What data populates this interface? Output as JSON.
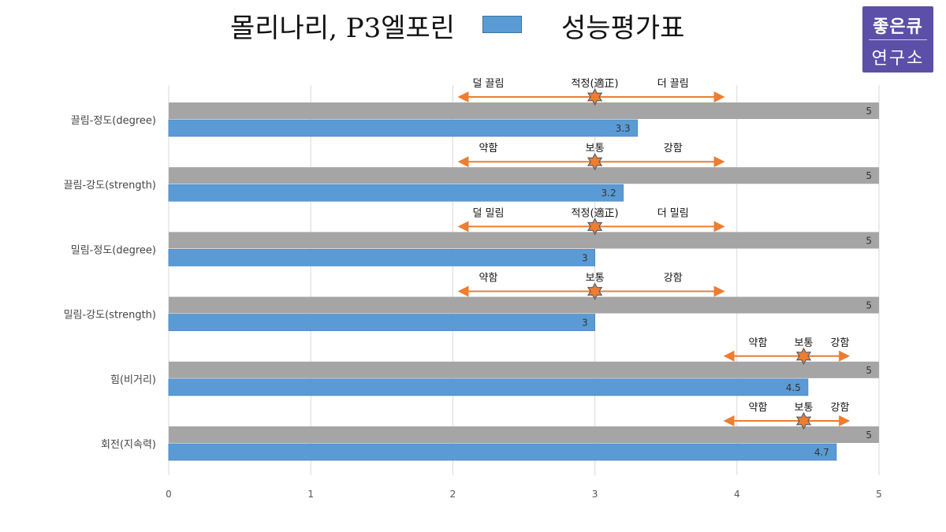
{
  "header": {
    "title_left": "몰리나리, P3엘포린",
    "title_right": "성능평가표",
    "legend_color": "#5b9bd5"
  },
  "logo": {
    "line1": "좋은큐",
    "line2": "연구소",
    "bg": "#5b4fa7"
  },
  "chart_data": {
    "type": "bar",
    "orientation": "horizontal",
    "categories": [
      "끌림-정도(degree)",
      "끌림-강도(strength)",
      "밀림-정도(degree)",
      "밀림-강도(strength)",
      "힘(비거리)",
      "회전(지속력)"
    ],
    "series": [
      {
        "values": [
          5,
          5,
          5,
          5,
          5,
          5
        ],
        "color": "#a5a5a5"
      },
      {
        "values": [
          3.3,
          3.2,
          3,
          3,
          4.5,
          4.7
        ],
        "color": "#5b9bd5"
      }
    ],
    "xlim": [
      0,
      5
    ],
    "xticks": [
      0,
      1,
      2,
      3,
      4,
      5
    ],
    "grid": true,
    "annotations": [
      {
        "left": "덜 끌림",
        "center": "적정(適正)",
        "right": "더 끌림",
        "marker": 3,
        "from": 2.05,
        "to": 3.9
      },
      {
        "left": "약함",
        "center": "보통",
        "right": "강함",
        "marker": 3,
        "from": 2.05,
        "to": 3.9
      },
      {
        "left": "덜 밀림",
        "center": "적정(適正)",
        "right": "더 밀림",
        "marker": 3,
        "from": 2.05,
        "to": 3.9
      },
      {
        "left": "약함",
        "center": "보통",
        "right": "강함",
        "marker": 3,
        "from": 2.05,
        "to": 3.9
      },
      {
        "left": "약함",
        "center": "보통",
        "right": "강함",
        "marker": 4.47,
        "from": 3.92,
        "to": 4.78
      },
      {
        "left": "약함",
        "center": "보통",
        "right": "강함",
        "marker": 4.47,
        "from": 3.92,
        "to": 4.78
      }
    ],
    "arrow_color": "#ed7d31",
    "star_color": "#ed7d31"
  }
}
